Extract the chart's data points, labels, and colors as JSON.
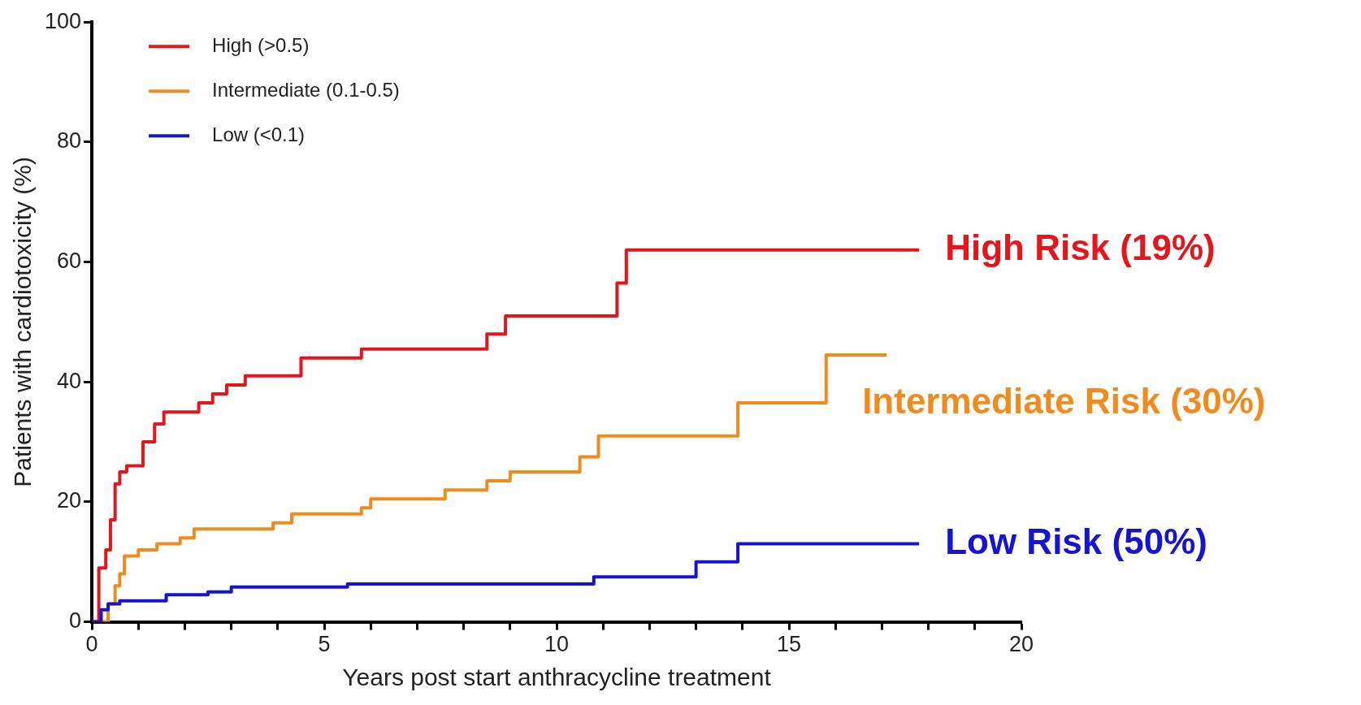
{
  "chart_data": {
    "type": "step",
    "xlabel": "Years post start anthracycline treatment",
    "ylabel": "Patients with cardiotoxicity (%)",
    "xlim": [
      0,
      20
    ],
    "xticks": [
      0,
      {
        "value": 1,
        "label": null
      },
      {
        "value": 2,
        "label": null
      },
      {
        "value": 3,
        "label": null
      },
      {
        "value": 4,
        "label": null
      },
      5,
      {
        "value": 6,
        "label": null
      },
      {
        "value": 7,
        "label": null
      },
      {
        "value": 8,
        "label": null
      },
      {
        "value": 9,
        "label": null
      },
      10,
      {
        "value": 11,
        "label": null
      },
      {
        "value": 12,
        "label": null
      },
      {
        "value": 13,
        "label": null
      },
      {
        "value": 14,
        "label": null
      },
      15,
      {
        "value": 16,
        "label": null
      },
      {
        "value": 17,
        "label": null
      },
      {
        "value": 18,
        "label": null
      },
      {
        "value": 19,
        "label": null
      },
      20
    ],
    "ylim": [
      0,
      100
    ],
    "yticks": [
      0,
      20,
      40,
      60,
      80,
      100
    ],
    "grid": false,
    "legend": "top left",
    "line_style": "solid",
    "marker": "none",
    "series": [
      {
        "name": "High (>0.5)",
        "color": "#e8141c",
        "x": [
          0,
          0.15,
          0.3,
          0.4,
          0.5,
          0.6,
          0.75,
          1.1,
          1.35,
          1.55,
          2.3,
          2.6,
          2.9,
          3.3,
          4.5,
          5.8,
          8.5,
          8.9,
          11.3,
          11.5,
          17.8
        ],
        "values": [
          0,
          9,
          12,
          17,
          23,
          25,
          26,
          30,
          33,
          35,
          36.5,
          38,
          39.5,
          41,
          44,
          45.5,
          48,
          51,
          56.5,
          62,
          62
        ]
      },
      {
        "name": "Intermediate (0.1-0.5)",
        "color": "#f08c1e",
        "x": [
          0.2,
          0.35,
          0.5,
          0.6,
          0.7,
          1.0,
          1.4,
          1.9,
          2.2,
          3.9,
          4.3,
          5.8,
          6.0,
          7.6,
          8.5,
          9.0,
          10.5,
          10.9,
          13.9,
          15.8,
          17.1
        ],
        "values": [
          0,
          3,
          6,
          8,
          11,
          12,
          13,
          14,
          15.5,
          16.5,
          18,
          19,
          20.5,
          22,
          23.5,
          25,
          27.5,
          31,
          36.5,
          44.5,
          44.5
        ]
      },
      {
        "name": "Low (<0.1)",
        "color": "#1414d2",
        "x": [
          0,
          0.2,
          0.35,
          0.6,
          1.6,
          2.5,
          3.0,
          5.5,
          10.8,
          13.0,
          13.9,
          17.8
        ],
        "values": [
          0,
          2,
          3,
          3.5,
          4.5,
          5,
          5.8,
          6.3,
          7.5,
          10,
          13,
          13
        ]
      }
    ],
    "annotations": [
      "High Risk (19%)",
      "Intermediate Risk (30%)",
      "Low Risk (50%)"
    ]
  }
}
